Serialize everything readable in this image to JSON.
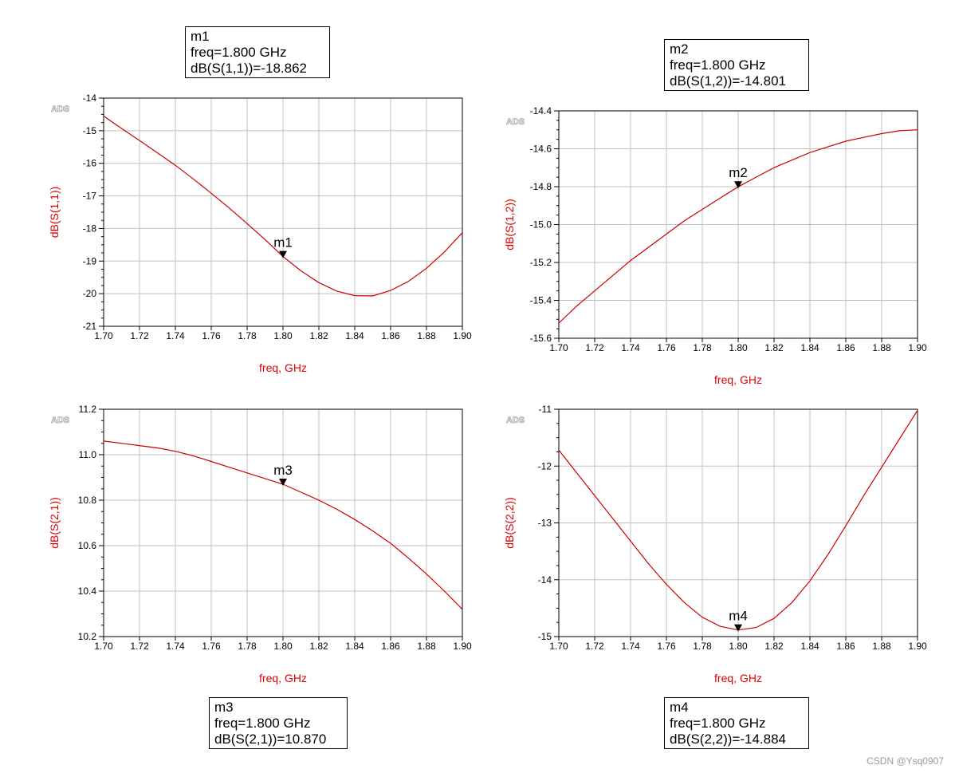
{
  "chart_data": [
    {
      "type": "line",
      "marker": "m1",
      "xlabel": "freq, GHz",
      "ylabel": "dB(S(1,1))",
      "badge": "ADS",
      "xlim": [
        1.7,
        1.9
      ],
      "ylim": [
        -21,
        -14
      ],
      "xticks": [
        "1.70",
        "1.72",
        "1.74",
        "1.76",
        "1.78",
        "1.80",
        "1.82",
        "1.84",
        "1.86",
        "1.88",
        "1.90"
      ],
      "yticks": [
        "-14",
        "-15",
        "-16",
        "-17",
        "-18",
        "-19",
        "-20",
        "-21"
      ],
      "series": [
        {
          "name": "dB(S(1,1))",
          "x": [
            1.7,
            1.71,
            1.72,
            1.73,
            1.74,
            1.75,
            1.76,
            1.77,
            1.78,
            1.79,
            1.8,
            1.81,
            1.82,
            1.83,
            1.84,
            1.85,
            1.86,
            1.87,
            1.88,
            1.89,
            1.9
          ],
          "y": [
            -14.55,
            -14.93,
            -15.3,
            -15.68,
            -16.06,
            -16.48,
            -16.92,
            -17.37,
            -17.85,
            -18.34,
            -18.862,
            -19.3,
            -19.66,
            -19.92,
            -20.06,
            -20.07,
            -19.9,
            -19.62,
            -19.22,
            -18.72,
            -18.13
          ]
        }
      ],
      "markers": [
        {
          "label": "m1",
          "x": 1.8,
          "y": -18.862
        }
      ],
      "readout": {
        "name": "m1",
        "freq": "freq=1.800 GHz",
        "value": "dB(S(1,1))=-18.862"
      }
    },
    {
      "type": "line",
      "marker": "m2",
      "xlabel": "freq, GHz",
      "ylabel": "dB(S(1,2))",
      "badge": "ADS",
      "xlim": [
        1.7,
        1.9
      ],
      "ylim": [
        -15.6,
        -14.4
      ],
      "xticks": [
        "1.70",
        "1.72",
        "1.74",
        "1.76",
        "1.78",
        "1.80",
        "1.82",
        "1.84",
        "1.86",
        "1.88",
        "1.90"
      ],
      "yticks": [
        "-14.4",
        "-14.6",
        "-14.8",
        "-15.0",
        "-15.2",
        "-15.4",
        "-15.6"
      ],
      "series": [
        {
          "name": "dB(S(1,2))",
          "x": [
            1.7,
            1.71,
            1.72,
            1.73,
            1.74,
            1.75,
            1.76,
            1.77,
            1.78,
            1.79,
            1.8,
            1.81,
            1.82,
            1.83,
            1.84,
            1.85,
            1.86,
            1.87,
            1.88,
            1.89,
            1.9
          ],
          "y": [
            -15.52,
            -15.43,
            -15.35,
            -15.27,
            -15.19,
            -15.12,
            -15.05,
            -14.98,
            -14.92,
            -14.86,
            -14.801,
            -14.75,
            -14.7,
            -14.66,
            -14.62,
            -14.59,
            -14.56,
            -14.54,
            -14.52,
            -14.505,
            -14.5
          ]
        }
      ],
      "markers": [
        {
          "label": "m2",
          "x": 1.8,
          "y": -14.801
        }
      ],
      "readout": {
        "name": "m2",
        "freq": "freq=1.800 GHz",
        "value": "dB(S(1,2))=-14.801"
      }
    },
    {
      "type": "line",
      "marker": "m3",
      "xlabel": "freq, GHz",
      "ylabel": "dB(S(2,1))",
      "badge": "ADS",
      "xlim": [
        1.7,
        1.9
      ],
      "ylim": [
        10.2,
        11.2
      ],
      "xticks": [
        "1.70",
        "1.72",
        "1.74",
        "1.76",
        "1.78",
        "1.80",
        "1.82",
        "1.84",
        "1.86",
        "1.88",
        "1.90"
      ],
      "yticks": [
        "11.2",
        "11.0",
        "10.8",
        "10.6",
        "10.4",
        "10.2"
      ],
      "series": [
        {
          "name": "dB(S(2,1))",
          "x": [
            1.7,
            1.71,
            1.72,
            1.73,
            1.74,
            1.75,
            1.76,
            1.77,
            1.78,
            1.79,
            1.8,
            1.81,
            1.82,
            1.83,
            1.84,
            1.85,
            1.86,
            1.87,
            1.88,
            1.89,
            1.9
          ],
          "y": [
            11.06,
            11.05,
            11.04,
            11.03,
            11.015,
            10.995,
            10.97,
            10.945,
            10.92,
            10.895,
            10.87,
            10.835,
            10.8,
            10.76,
            10.715,
            10.665,
            10.61,
            10.545,
            10.475,
            10.4,
            10.32
          ]
        }
      ],
      "markers": [
        {
          "label": "m3",
          "x": 1.8,
          "y": 10.87
        }
      ],
      "readout": {
        "name": "m3",
        "freq": "freq=1.800 GHz",
        "value": "dB(S(2,1))=10.870"
      }
    },
    {
      "type": "line",
      "marker": "m4",
      "xlabel": "freq, GHz",
      "ylabel": "dB(S(2,2))",
      "badge": "ADS",
      "xlim": [
        1.7,
        1.9
      ],
      "ylim": [
        -15,
        -11
      ],
      "xticks": [
        "1.70",
        "1.72",
        "1.74",
        "1.76",
        "1.78",
        "1.80",
        "1.82",
        "1.84",
        "1.86",
        "1.88",
        "1.90"
      ],
      "yticks": [
        "-11",
        "-12",
        "-13",
        "-14",
        "-15"
      ],
      "series": [
        {
          "name": "dB(S(2,2))",
          "x": [
            1.7,
            1.71,
            1.72,
            1.73,
            1.74,
            1.75,
            1.76,
            1.77,
            1.78,
            1.79,
            1.8,
            1.81,
            1.82,
            1.83,
            1.84,
            1.85,
            1.86,
            1.87,
            1.88,
            1.89,
            1.9
          ],
          "y": [
            -11.72,
            -12.12,
            -12.52,
            -12.92,
            -13.32,
            -13.72,
            -14.08,
            -14.4,
            -14.66,
            -14.82,
            -14.884,
            -14.84,
            -14.68,
            -14.4,
            -14.02,
            -13.56,
            -13.05,
            -12.52,
            -12.02,
            -11.52,
            -11.02
          ]
        }
      ],
      "markers": [
        {
          "label": "m4",
          "x": 1.8,
          "y": -14.884
        }
      ],
      "readout": {
        "name": "m4",
        "freq": "freq=1.800 GHz",
        "value": "dB(S(2,2))=-14.884"
      }
    }
  ],
  "colors": {
    "trace": "#cc0000",
    "label": "#dd0000",
    "grid": "#c0c0c0",
    "axis": "#000000",
    "badge": "#a8a8a8"
  },
  "watermark": "CSDN @Ysq0907"
}
